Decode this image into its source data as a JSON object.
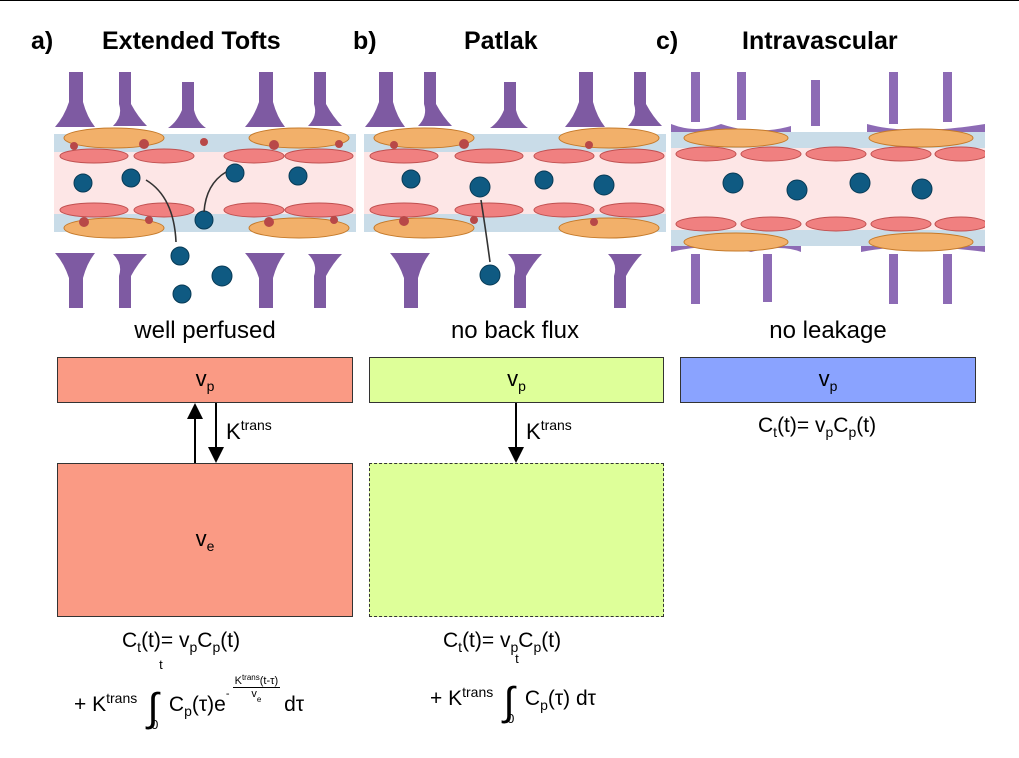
{
  "panels": [
    {
      "letter": "a)",
      "title": "Extended Tofts",
      "caption": "well perfused",
      "plasma_label": "v",
      "plasma_sub": "p",
      "ees_label": "v",
      "ees_sub": "e",
      "k_label": "K",
      "k_sup": "trans",
      "eq1": {
        "c": "C",
        "c_sub": "t",
        "arg": "(t)= v",
        "vp_sub": "p",
        "cp": "C",
        "cp_sub": "p",
        "cp_arg": "(t)"
      },
      "eq2": {
        "plus": "+ K",
        "k_sup": "trans",
        "int_upper": "t",
        "int_lower": "0",
        "cp": "C",
        "cp_sub": "p",
        "cp_arg": "(τ)e",
        "exp_minus": "-",
        "exp_num_k": "K",
        "exp_num_sup": "trans",
        "exp_num_arg": "(t-τ)",
        "exp_den": "v",
        "exp_den_sub": "e",
        "dt": "dτ"
      }
    },
    {
      "letter": "b)",
      "title": "Patlak",
      "caption": "no back flux",
      "plasma_label": "v",
      "plasma_sub": "p",
      "k_label": "K",
      "k_sup": "trans",
      "eq1": {
        "c": "C",
        "c_sub": "t",
        "arg": "(t)= v",
        "vp_sub": "p",
        "cp": "C",
        "cp_sub": "p",
        "cp_arg": "(t)"
      },
      "eq2": {
        "plus": "+ K",
        "k_sup": "trans",
        "int_upper": "t",
        "int_lower": "0",
        "cp": "C",
        "cp_sub": "p",
        "cp_arg": "(τ) dτ"
      }
    },
    {
      "letter": "c)",
      "title": "Intravascular",
      "caption": "no leakage",
      "plasma_label": "v",
      "plasma_sub": "p",
      "eq1": {
        "c": "C",
        "c_sub": "t",
        "arg": "(t)= v",
        "vp_sub": "p",
        "cp": "C",
        "cp_sub": "p",
        "cp_arg": "(t)"
      }
    }
  ],
  "colors": {
    "tofts_box": "#fa9a84",
    "patlak_box": "#deff99",
    "intravascular_box": "#8aa3ff",
    "lumen": "#fde6e6",
    "membrane": "#c9dce8",
    "endothelial": "#f08080",
    "pericyte": "#f2b06a",
    "astrocyte": "#7e5aa2",
    "particle": "#0f5a82"
  }
}
